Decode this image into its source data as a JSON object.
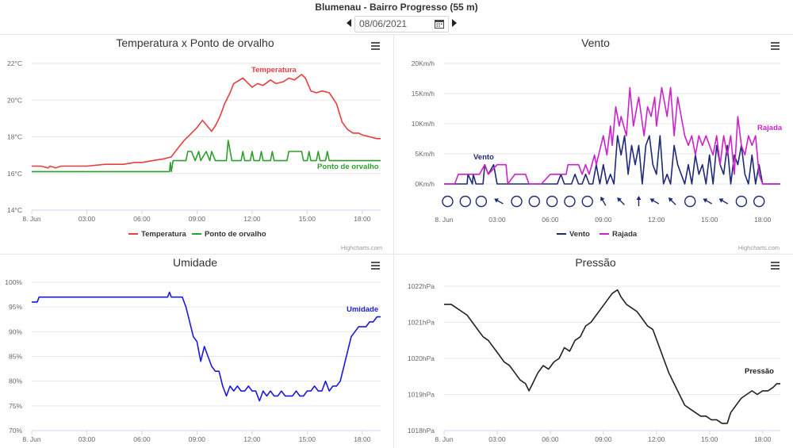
{
  "header": {
    "title": "Blumenau - Bairro Progresso (55 m)",
    "date": "08/06/2021",
    "calendar_icon": "calendar-icon",
    "prev_icon": "triangle-left-icon",
    "next_icon": "triangle-right-icon"
  },
  "credits": "Highcharts.com",
  "menu_icon": "hamburger-menu-icon",
  "chart_data": [
    {
      "id": "temp",
      "type": "line",
      "title": "Temperatura x Ponto de orvalho",
      "x_unit": "hours",
      "xlim": [
        0,
        19
      ],
      "x_ticks": [
        0,
        3,
        6,
        9,
        12,
        15,
        18
      ],
      "x_tick_labels": [
        "8. Jun",
        "03:00",
        "06:00",
        "09:00",
        "12:00",
        "15:00",
        "18:00"
      ],
      "ylim": [
        14,
        22
      ],
      "y_ticks": [
        14,
        16,
        18,
        20,
        22
      ],
      "y_tick_labels": [
        "14°C",
        "16°C",
        "18°C",
        "20°C",
        "22°C"
      ],
      "series": [
        {
          "name": "Temperatura",
          "color": "#e83e3e",
          "end_label": "Temperatura",
          "x": [
            0,
            0.5,
            0.9,
            1.0,
            1.3,
            1.6,
            2.0,
            2.6,
            3.0,
            4.0,
            4.5,
            5.0,
            5.6,
            6.0,
            6.6,
            7.2,
            7.6,
            7.9,
            8.3,
            8.6,
            9.0,
            9.3,
            9.8,
            10.0,
            10.2,
            10.4,
            10.5,
            10.8,
            11.0,
            11.5,
            12.0,
            12.3,
            12.6,
            13.0,
            13.3,
            13.7,
            14.0,
            14.3,
            14.7,
            14.9,
            15.2,
            15.5,
            15.8,
            16.2,
            16.6,
            16.9,
            17.2,
            17.5,
            17.8,
            18.0,
            18.4,
            18.8,
            19.0
          ],
          "values": [
            16.4,
            16.4,
            16.3,
            16.4,
            16.3,
            16.4,
            16.4,
            16.4,
            16.4,
            16.5,
            16.5,
            16.5,
            16.6,
            16.6,
            16.7,
            16.8,
            16.9,
            17.3,
            17.8,
            18.1,
            18.5,
            18.9,
            18.3,
            18.6,
            19.0,
            19.5,
            19.8,
            20.4,
            20.9,
            21.2,
            20.7,
            20.9,
            20.8,
            21.1,
            20.9,
            21.0,
            21.2,
            21.1,
            21.4,
            21.2,
            20.5,
            20.4,
            20.5,
            20.4,
            19.8,
            18.8,
            18.4,
            18.2,
            18.2,
            18.1,
            18.0,
            17.9,
            17.9
          ]
        },
        {
          "name": "Ponto de orvalho",
          "color": "#2e9e2e",
          "end_label": "Ponto de orvalho",
          "x": [
            0,
            7.5,
            7.55,
            7.6,
            7.7,
            7.8,
            8.4,
            8.5,
            8.7,
            8.9,
            9.1,
            9.2,
            9.5,
            9.7,
            9.8,
            10.0,
            10.1,
            10.6,
            10.7,
            10.9,
            11.0,
            11.4,
            11.5,
            11.6,
            11.9,
            12.0,
            12.1,
            12.4,
            12.5,
            12.6,
            13.0,
            13.1,
            13.2,
            13.9,
            14.0,
            14.7,
            14.8,
            15.0,
            15.1,
            15.2,
            15.5,
            15.6,
            15.7,
            16.0,
            16.1,
            16.2,
            16.5,
            16.6,
            16.7,
            19.0
          ],
          "values": [
            16.1,
            16.1,
            16.6,
            16.1,
            16.7,
            16.7,
            16.7,
            17.2,
            17.2,
            16.7,
            17.2,
            16.7,
            17.2,
            16.7,
            17.2,
            16.7,
            16.7,
            16.7,
            17.8,
            16.7,
            16.7,
            16.7,
            17.2,
            16.7,
            16.7,
            17.2,
            16.7,
            16.7,
            17.2,
            16.7,
            16.7,
            17.2,
            16.7,
            16.7,
            17.2,
            17.2,
            16.7,
            16.7,
            17.2,
            16.7,
            16.7,
            17.2,
            16.7,
            16.7,
            17.2,
            16.7,
            16.7,
            16.7,
            16.7,
            16.7
          ]
        }
      ]
    },
    {
      "id": "vento",
      "type": "line",
      "title": "Vento",
      "x_unit": "hours",
      "xlim": [
        0,
        19
      ],
      "x_ticks": [
        0,
        3,
        6,
        9,
        12,
        15,
        18
      ],
      "x_tick_labels": [
        "8. Jun",
        "03:00",
        "06:00",
        "09:00",
        "12:00",
        "15:00",
        "18:00"
      ],
      "ylim": [
        0,
        20
      ],
      "y_ticks": [
        0,
        5,
        10,
        15,
        20
      ],
      "y_tick_labels": [
        "0Km/h",
        "5Km/h",
        "10Km/h",
        "15Km/h",
        "20Km/h"
      ],
      "series": [
        {
          "name": "Vento",
          "color": "#1e2a78",
          "end_label": "Vento",
          "x": [
            0,
            0.3,
            0.5,
            1.3,
            1.35,
            1.6,
            1.65,
            1.8,
            2.2,
            2.3,
            2.5,
            2.8,
            3.0,
            3.3,
            3.4,
            6.4,
            6.6,
            6.8,
            7.0,
            7.2,
            7.4,
            7.6,
            7.8,
            8.0,
            8.2,
            8.4,
            8.6,
            8.8,
            9.0,
            9.2,
            9.4,
            9.6,
            9.8,
            10.0,
            10.2,
            10.4,
            10.6,
            10.8,
            11.0,
            11.2,
            11.4,
            11.6,
            11.8,
            12.0,
            12.2,
            12.4,
            12.6,
            12.8,
            13.0,
            13.2,
            13.4,
            13.6,
            13.8,
            14.0,
            14.2,
            14.4,
            14.6,
            14.8,
            15.0,
            15.2,
            15.4,
            15.6,
            15.8,
            16.0,
            16.2,
            16.4,
            16.6,
            16.8,
            17.0,
            17.2,
            17.4,
            17.6,
            17.8,
            18.0,
            19.0
          ],
          "values": [
            0,
            0,
            0,
            0,
            1.6,
            0,
            1.6,
            0,
            0,
            3.2,
            1.6,
            3.2,
            0,
            0,
            0,
            0,
            1.6,
            0,
            0,
            0,
            1.6,
            0,
            0,
            1.6,
            0,
            0,
            3.2,
            0,
            3.2,
            0,
            1.6,
            0,
            8.0,
            4.8,
            8.0,
            1.6,
            6.4,
            3.2,
            6.4,
            0,
            6.4,
            8.0,
            3.2,
            1.6,
            8.0,
            0,
            1.6,
            0,
            6.4,
            3.2,
            1.6,
            0,
            3.2,
            0,
            4.8,
            1.6,
            3.2,
            0,
            4.8,
            0,
            6.4,
            3.2,
            1.6,
            6.4,
            0,
            4.8,
            3.2,
            6.4,
            1.6,
            0,
            4.8,
            0,
            3.2,
            0,
            0
          ]
        },
        {
          "name": "Rajada",
          "color": "#cc22cc",
          "end_label": "Rajada",
          "x": [
            0,
            0.6,
            0.8,
            1.6,
            2.0,
            2.3,
            2.5,
            3.0,
            3.5,
            3.6,
            4.0,
            4.6,
            4.8,
            5.5,
            6.0,
            6.3,
            6.9,
            7.0,
            7.6,
            7.8,
            8.0,
            8.2,
            8.5,
            8.6,
            9.0,
            9.2,
            9.4,
            9.5,
            9.7,
            9.9,
            10.0,
            10.3,
            10.5,
            10.7,
            10.9,
            11.0,
            11.3,
            11.5,
            11.7,
            11.9,
            12.0,
            12.3,
            12.6,
            12.8,
            13.0,
            13.2,
            13.4,
            13.6,
            13.8,
            14.0,
            14.2,
            14.4,
            14.6,
            14.8,
            15.0,
            15.2,
            15.4,
            15.6,
            15.8,
            16.0,
            16.2,
            16.4,
            16.6,
            16.8,
            17.0,
            17.2,
            17.4,
            17.6,
            17.8,
            18.0,
            18.5,
            19.0
          ],
          "values": [
            0,
            0,
            1.6,
            1.6,
            1.6,
            3.2,
            1.6,
            3.2,
            3.2,
            0,
            1.6,
            1.6,
            0,
            0,
            1.6,
            1.6,
            1.6,
            3.2,
            3.2,
            1.6,
            3.2,
            1.6,
            4.8,
            3.2,
            8.0,
            4.8,
            9.6,
            6.4,
            12.8,
            9.6,
            11.2,
            8.0,
            16.0,
            9.6,
            12.8,
            14.4,
            8.0,
            12.8,
            11.2,
            14.4,
            9.6,
            16.0,
            11.2,
            16.0,
            8.0,
            14.4,
            11.2,
            8.0,
            6.4,
            8.0,
            4.8,
            8.0,
            6.4,
            8.0,
            6.4,
            4.8,
            8.0,
            3.2,
            8.0,
            4.8,
            8.0,
            1.6,
            11.2,
            6.4,
            4.8,
            8.0,
            6.4,
            8.0,
            1.6,
            0,
            0,
            0
          ]
        }
      ],
      "direction_row": [
        {
          "x": 0.2,
          "dir": "calm"
        },
        {
          "x": 1.2,
          "dir": "calm"
        },
        {
          "x": 2.1,
          "dir": "calm"
        },
        {
          "x": 3.1,
          "dir": 300
        },
        {
          "x": 4.1,
          "dir": "calm"
        },
        {
          "x": 5.1,
          "dir": "calm"
        },
        {
          "x": 6.1,
          "dir": "calm"
        },
        {
          "x": 7.1,
          "dir": "calm"
        },
        {
          "x": 8.1,
          "dir": "calm"
        },
        {
          "x": 9.0,
          "dir": 330
        },
        {
          "x": 10.0,
          "dir": 315
        },
        {
          "x": 11.0,
          "dir": 0
        },
        {
          "x": 11.9,
          "dir": 300
        },
        {
          "x": 12.9,
          "dir": 315
        },
        {
          "x": 13.9,
          "dir": "calm"
        },
        {
          "x": 14.9,
          "dir": 300
        },
        {
          "x": 15.8,
          "dir": 300
        },
        {
          "x": 16.8,
          "dir": "calm"
        },
        {
          "x": 17.8,
          "dir": "calm"
        }
      ]
    },
    {
      "id": "umidade",
      "type": "line",
      "title": "Umidade",
      "x_unit": "hours",
      "xlim": [
        0,
        19
      ],
      "x_ticks": [
        0,
        3,
        6,
        9,
        12,
        15,
        18
      ],
      "x_tick_labels": [
        "8. Jun",
        "03:00",
        "06:00",
        "09:00",
        "12:00",
        "15:00",
        "18:00"
      ],
      "ylim": [
        70,
        100
      ],
      "y_ticks": [
        70,
        75,
        80,
        85,
        90,
        95,
        100
      ],
      "y_tick_labels": [
        "70%",
        "75%",
        "80%",
        "85%",
        "90%",
        "95%",
        "100%"
      ],
      "series": [
        {
          "name": "Umidade",
          "color": "#1a1adb",
          "end_label": "Umidade",
          "x": [
            0,
            0.3,
            0.4,
            7.4,
            7.5,
            7.6,
            8.2,
            8.4,
            8.6,
            8.8,
            9.0,
            9.2,
            9.4,
            9.6,
            9.8,
            10.0,
            10.2,
            10.4,
            10.6,
            10.8,
            11.0,
            11.2,
            11.4,
            11.6,
            11.8,
            12.0,
            12.2,
            12.4,
            12.6,
            12.8,
            13.0,
            13.2,
            13.4,
            13.6,
            13.8,
            14.0,
            14.2,
            14.4,
            14.6,
            14.8,
            15.0,
            15.2,
            15.4,
            15.6,
            15.8,
            16.0,
            16.2,
            16.4,
            16.6,
            16.8,
            17.0,
            17.2,
            17.4,
            17.6,
            17.8,
            18.0,
            18.2,
            18.4,
            18.6,
            18.8,
            19.0
          ],
          "values": [
            96,
            96,
            97,
            97,
            98,
            97,
            97,
            95,
            92,
            89,
            88,
            84,
            87,
            85,
            83,
            82,
            82,
            79,
            77,
            79,
            78,
            79,
            78,
            78,
            79,
            78,
            78,
            76,
            78,
            77,
            78,
            77,
            77,
            78,
            77,
            77,
            77,
            78,
            77,
            77,
            78,
            78,
            79,
            78,
            78,
            80,
            78,
            79,
            79,
            80,
            83,
            86,
            89,
            90,
            91,
            91,
            91,
            92,
            92,
            93,
            93
          ]
        }
      ]
    },
    {
      "id": "pressao",
      "type": "line",
      "title": "Pressão",
      "x_unit": "hours",
      "xlim": [
        0,
        19
      ],
      "x_ticks": [
        0,
        3,
        6,
        9,
        12,
        15,
        18
      ],
      "x_tick_labels": [
        "8. Jun",
        "03:00",
        "06:00",
        "09:00",
        "12:00",
        "15:00",
        "18:00"
      ],
      "ylim": [
        1018,
        1022
      ],
      "y_ticks": [
        1018,
        1019,
        1020,
        1021,
        1022
      ],
      "y_tick_labels": [
        "1018hPa",
        "1019hPa",
        "1020hPa",
        "1021hPa",
        "1022hPa"
      ],
      "series": [
        {
          "name": "Pressão",
          "color": "#222222",
          "end_label": "Pressão",
          "x": [
            0,
            0.4,
            0.7,
            1.0,
            1.3,
            1.6,
            1.9,
            2.2,
            2.5,
            2.8,
            3.1,
            3.4,
            3.7,
            4.0,
            4.3,
            4.6,
            4.8,
            5.0,
            5.3,
            5.6,
            5.9,
            6.2,
            6.5,
            6.8,
            7.1,
            7.4,
            7.7,
            8.0,
            8.3,
            8.6,
            8.9,
            9.2,
            9.5,
            9.8,
            10.0,
            10.3,
            10.6,
            10.9,
            11.2,
            11.5,
            11.8,
            12.1,
            12.4,
            12.7,
            13.0,
            13.3,
            13.6,
            13.9,
            14.2,
            14.5,
            14.8,
            15.1,
            15.4,
            15.7,
            16.0,
            16.2,
            16.5,
            16.8,
            17.1,
            17.4,
            17.7,
            18.0,
            18.3,
            18.6,
            18.8,
            19.0
          ],
          "values": [
            1021.5,
            1021.5,
            1021.4,
            1021.3,
            1021.2,
            1021.0,
            1020.8,
            1020.6,
            1020.5,
            1020.3,
            1020.1,
            1019.9,
            1019.8,
            1019.6,
            1019.4,
            1019.3,
            1019.1,
            1019.3,
            1019.6,
            1019.8,
            1019.7,
            1019.9,
            1020.0,
            1020.3,
            1020.2,
            1020.5,
            1020.6,
            1020.9,
            1021.0,
            1021.2,
            1021.4,
            1021.6,
            1021.8,
            1021.9,
            1021.7,
            1021.5,
            1021.4,
            1021.3,
            1021.1,
            1020.9,
            1020.8,
            1020.4,
            1020.0,
            1019.6,
            1019.3,
            1019.0,
            1018.7,
            1018.6,
            1018.5,
            1018.4,
            1018.4,
            1018.3,
            1018.3,
            1018.2,
            1018.2,
            1018.5,
            1018.7,
            1018.9,
            1019.0,
            1019.1,
            1019.0,
            1019.1,
            1019.1,
            1019.2,
            1019.3,
            1019.3
          ]
        }
      ]
    }
  ]
}
